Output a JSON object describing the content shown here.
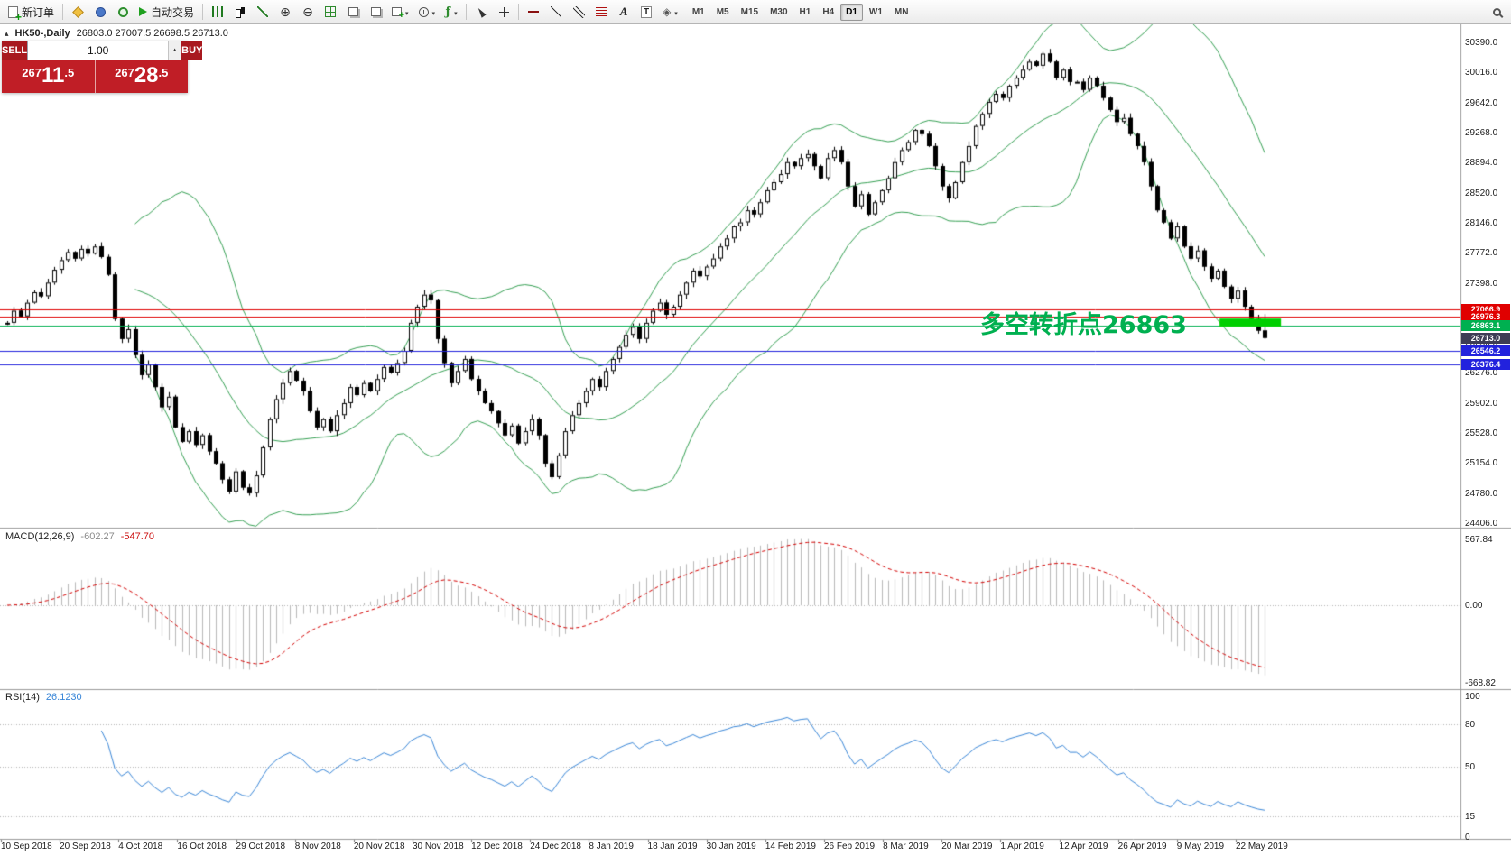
{
  "colors": {
    "up_candle": "#ffffff",
    "down_candle": "#000000",
    "candle_border": "#000000",
    "bollinger": "#35a053",
    "macd_hist": "#b9b9b9",
    "macd_signal": "#d40000",
    "rsi_line": "#3a87d8",
    "grid_gray": "#9a9a9a"
  },
  "toolbar": {
    "new_order": "新订单",
    "autotrading": "自动交易",
    "text_tool": "A",
    "label_tool": "T",
    "timeframes": [
      "M1",
      "M5",
      "M15",
      "M30",
      "H1",
      "H4",
      "D1",
      "W1",
      "MN"
    ],
    "active_timeframe": "D1"
  },
  "chart_header": {
    "symbol": "HK50-,Daily",
    "ohlc": "26803.0 27007.5 26698.5 26713.0"
  },
  "trade_panel": {
    "sell_label": "SELL",
    "buy_label": "BUY",
    "volume": "1.00",
    "sell_price": {
      "prefix": "267",
      "big": "11",
      "frac": ".5"
    },
    "buy_price": {
      "prefix": "267",
      "big": "28",
      "frac": ".5"
    }
  },
  "annotation": {
    "text": "多空转折点26863",
    "color": "#00b050"
  },
  "indicators": {
    "macd_label": "MACD(12,26,9)",
    "macd_value": "-602.27",
    "macd_signal_value": "-547.70",
    "macd_axis": [
      "567.84",
      "0.00",
      "-668.82"
    ],
    "rsi_label": "RSI(14)",
    "rsi_value": "26.1230",
    "rsi_axis": [
      "100",
      "80",
      "50",
      "15",
      "0"
    ]
  },
  "price_axis_labels": [
    "30390.0",
    "30016.0",
    "29642.0",
    "29268.0",
    "28894.0",
    "28520.0",
    "28146.0",
    "27772.0",
    "27398.0",
    "27024.0",
    "26650.0",
    "26276.0",
    "25902.0",
    "25528.0",
    "25154.0",
    "24780.0",
    "24406.0"
  ],
  "date_axis_labels": [
    "10 Sep 2018",
    "20 Sep 2018",
    "4 Oct 2018",
    "16 Oct 2018",
    "29 Oct 2018",
    "8 Nov 2018",
    "20 Nov 2018",
    "30 Nov 2018",
    "12 Dec 2018",
    "24 Dec 2018",
    "8 Jan 2019",
    "18 Jan 2019",
    "30 Jan 2019",
    "14 Feb 2019",
    "26 Feb 2019",
    "8 Mar 2019",
    "20 Mar 2019",
    "1 Apr 2019",
    "12 Apr 2019",
    "26 Apr 2019",
    "9 May 2019",
    "22 May 2019"
  ],
  "chart_data": {
    "type": "candlestick",
    "symbol": "HK50",
    "timeframe": "D1",
    "ylim": [
      24406,
      30390
    ],
    "ohlc_current": {
      "open": 26803.0,
      "high": 27007.5,
      "low": 26698.5,
      "close": 26713.0
    },
    "closes": [
      26900,
      27050,
      26980,
      27150,
      27280,
      27230,
      27400,
      27560,
      27680,
      27780,
      27700,
      27820,
      27760,
      27850,
      27720,
      27500,
      26950,
      26700,
      26820,
      26500,
      26250,
      26380,
      26100,
      25850,
      25980,
      25600,
      25420,
      25550,
      25380,
      25500,
      25300,
      25150,
      24950,
      24800,
      25050,
      24850,
      24780,
      25000,
      25350,
      25700,
      25950,
      26150,
      26300,
      26180,
      26050,
      25800,
      25600,
      25700,
      25550,
      25750,
      25900,
      26100,
      26000,
      26150,
      26050,
      26200,
      26350,
      26280,
      26400,
      26550,
      26900,
      27100,
      27250,
      27180,
      26700,
      26400,
      26150,
      26300,
      26450,
      26200,
      26050,
      25900,
      25800,
      25650,
      25500,
      25620,
      25400,
      25550,
      25700,
      25500,
      25150,
      24980,
      25250,
      25550,
      25750,
      25900,
      26050,
      26200,
      26100,
      26300,
      26450,
      26600,
      26750,
      26850,
      26700,
      26900,
      27050,
      27150,
      27000,
      27100,
      27250,
      27400,
      27550,
      27480,
      27600,
      27700,
      27850,
      27950,
      28100,
      28150,
      28300,
      28250,
      28400,
      28550,
      28650,
      28750,
      28900,
      28850,
      28950,
      29000,
      28850,
      28700,
      28950,
      29050,
      28900,
      28600,
      28350,
      28500,
      28250,
      28400,
      28550,
      28700,
      28900,
      29050,
      29150,
      29300,
      29250,
      29100,
      28850,
      28600,
      28450,
      28650,
      28900,
      29100,
      29350,
      29500,
      29650,
      29750,
      29700,
      29850,
      29950,
      30050,
      30150,
      30100,
      30250,
      30150,
      29950,
      30050,
      29900,
      29900,
      29800,
      29950,
      29850,
      29700,
      29550,
      29400,
      29450,
      29250,
      29100,
      28900,
      28600,
      28300,
      28150,
      27950,
      28100,
      27850,
      27700,
      27800,
      27600,
      27450,
      27550,
      27350,
      27200,
      27300,
      27100,
      26950,
      26803,
      26713
    ],
    "overlays": {
      "bollinger_period": 20,
      "bollinger_dev": 2
    },
    "lower_panels": [
      {
        "type": "macd",
        "params": [
          12,
          26,
          9
        ],
        "range": [
          -668.82,
          567.84
        ]
      },
      {
        "type": "rsi",
        "params": [
          14
        ],
        "levels": [
          80,
          50,
          15
        ],
        "range": [
          0,
          100
        ]
      }
    ],
    "h_lines": [
      {
        "price": 27066.9,
        "label": "27066.9",
        "color": "#e00000"
      },
      {
        "price": 26976.3,
        "label": "26976.3",
        "color": "#e00000"
      },
      {
        "price": 26863.1,
        "label": "26863.1",
        "color": "#00b050"
      },
      {
        "price": 26713.0,
        "label": "26713.0",
        "color": "#3d3d55",
        "last": true
      },
      {
        "price": 26546.2,
        "label": "26546.2",
        "color": "#2222dd"
      },
      {
        "price": 26376.4,
        "label": "26376.4",
        "color": "#2222dd"
      }
    ],
    "marker": {
      "price": 26863,
      "color": "#00cf00"
    }
  }
}
